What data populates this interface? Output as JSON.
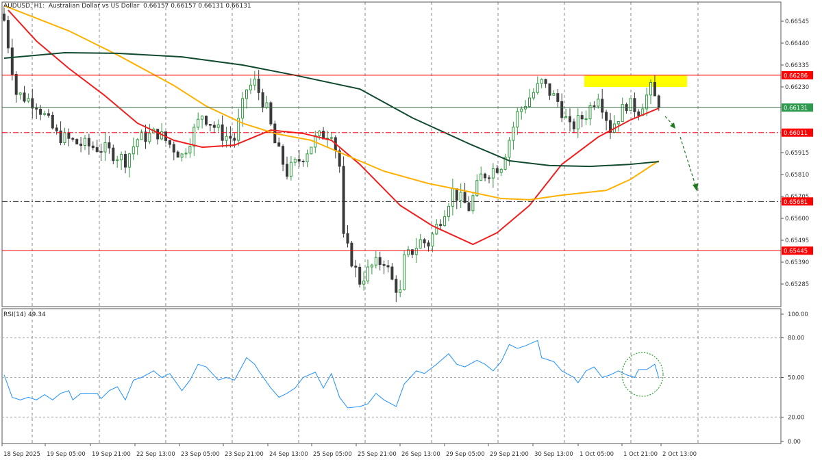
{
  "header": {
    "symbol": "AUDUSD",
    "timeframe": "H1",
    "description": "Australian Dollar vs US Dollar",
    "ohlc": "0.66157 0.66157 0.66131 0.66131",
    "full": "AUDUSD, H1:  Australian Dollar vs US Dollar  0.66157 0.66157 0.66131 0.66131"
  },
  "rsi_panel": {
    "title": "RSI(14) 49.34"
  },
  "colors": {
    "bull": "#2e9a3c",
    "bear": "#3a3a3a",
    "ma_fast": "#f01e1e",
    "ma_mid": "#ffb000",
    "ma_slow": "#0f4a2e",
    "rsi": "#1e90ff",
    "level_red": "#ff0000",
    "current": "#2e9a4e",
    "zone": "#ffff00",
    "arrow": "#1e7a1e"
  },
  "chart_data": [
    {
      "type": "candlestick",
      "title": "AUDUSD, H1",
      "ylim": [
        0.65215,
        0.66635
      ],
      "price_ticks": [
        "0.66545",
        "0.66440",
        "0.66335",
        "0.66230",
        "0.65915",
        "0.65810",
        "0.65705",
        "0.65600",
        "0.65495",
        "0.65390",
        "0.65285"
      ],
      "time_labels": [
        "18 Sep 2025",
        "19 Sep 05:00",
        "19 Sep 21:00",
        "22 Sep 13:00",
        "23 Sep 05:00",
        "23 Sep 21:00",
        "24 Sep 13:00",
        "25 Sep 05:00",
        "25 Sep 21:00",
        "26 Sep 13:00",
        "29 Sep 05:00",
        "29 Sep 21:00",
        "30 Sep 13:00",
        "1 Oct 05:00",
        "1 Oct 21:00",
        "2 Oct 13:00"
      ],
      "close_path": [
        [
          0,
          0.6655
        ],
        [
          2,
          0.6632
        ],
        [
          3,
          0.662
        ],
        [
          8,
          0.6615
        ],
        [
          13,
          0.66
        ],
        [
          18,
          0.6596
        ],
        [
          25,
          0.6593
        ],
        [
          30,
          0.6588
        ],
        [
          33,
          0.6598
        ],
        [
          38,
          0.6601
        ],
        [
          44,
          0.659
        ],
        [
          49,
          0.661
        ],
        [
          54,
          0.66
        ],
        [
          57,
          0.6598
        ],
        [
          60,
          0.6622
        ],
        [
          62,
          0.6625
        ],
        [
          65,
          0.6612
        ],
        [
          67,
          0.6596
        ],
        [
          70,
          0.6582
        ],
        [
          74,
          0.659
        ],
        [
          77,
          0.6598
        ],
        [
          81,
          0.6602
        ],
        [
          83,
          0.6585
        ],
        [
          84,
          0.655
        ],
        [
          86,
          0.654
        ],
        [
          88,
          0.653
        ],
        [
          91,
          0.6537
        ],
        [
          94,
          0.654
        ],
        [
          96,
          0.653
        ],
        [
          98,
          0.6524
        ],
        [
          99,
          0.654
        ],
        [
          103,
          0.6549
        ],
        [
          105,
          0.6548
        ],
        [
          108,
          0.656
        ],
        [
          111,
          0.6573
        ],
        [
          115,
          0.6565
        ],
        [
          118,
          0.658
        ],
        [
          123,
          0.6586
        ],
        [
          127,
          0.661
        ],
        [
          130,
          0.6618
        ],
        [
          133,
          0.6625
        ],
        [
          137,
          0.6616
        ],
        [
          140,
          0.6603
        ],
        [
          144,
          0.661
        ],
        [
          147,
          0.662
        ],
        [
          150,
          0.6603
        ],
        [
          154,
          0.6615
        ],
        [
          157,
          0.6612
        ],
        [
          160,
          0.6622
        ],
        [
          162,
          0.66131
        ]
      ],
      "moving_averages": [
        {
          "name": "MA fast (red)",
          "points": [
            [
              1,
              0.66598
            ],
            [
              8,
              0.6645
            ],
            [
              16,
              0.66319
            ],
            [
              25,
              0.66187
            ],
            [
              33,
              0.66056
            ],
            [
              42,
              0.65974
            ],
            [
              49,
              0.65941
            ],
            [
              57,
              0.65951
            ],
            [
              66,
              0.66023
            ],
            [
              74,
              0.66007
            ],
            [
              81,
              0.65974
            ],
            [
              88,
              0.65859
            ],
            [
              98,
              0.65662
            ],
            [
              106,
              0.65564
            ],
            [
              116,
              0.65475
            ],
            [
              122,
              0.65531
            ],
            [
              130,
              0.65662
            ],
            [
              138,
              0.65859
            ],
            [
              147,
              0.6599
            ],
            [
              155,
              0.66072
            ],
            [
              162,
              0.66128
            ]
          ]
        },
        {
          "name": "MA mid (orange)",
          "points": [
            [
              0,
              0.6662
            ],
            [
              16,
              0.66499
            ],
            [
              28,
              0.66384
            ],
            [
              42,
              0.66237
            ],
            [
              50,
              0.66138
            ],
            [
              59,
              0.66056
            ],
            [
              67,
              0.66007
            ],
            [
              76,
              0.65974
            ],
            [
              84,
              0.65908
            ],
            [
              94,
              0.65826
            ],
            [
              105,
              0.65767
            ],
            [
              115,
              0.65728
            ],
            [
              123,
              0.65695
            ],
            [
              130,
              0.65689
            ],
            [
              138,
              0.65711
            ],
            [
              149,
              0.65734
            ],
            [
              155,
              0.65787
            ],
            [
              162,
              0.65876
            ]
          ]
        },
        {
          "name": "MA slow (dark green)",
          "points": [
            [
              0,
              0.66368
            ],
            [
              15,
              0.66394
            ],
            [
              28,
              0.66391
            ],
            [
              44,
              0.66374
            ],
            [
              59,
              0.66335
            ],
            [
              72,
              0.66286
            ],
            [
              88,
              0.6622
            ],
            [
              101,
              0.66082
            ],
            [
              115,
              0.65958
            ],
            [
              125,
              0.65876
            ],
            [
              135,
              0.65853
            ],
            [
              145,
              0.65849
            ],
            [
              155,
              0.65859
            ],
            [
              162,
              0.65872
            ]
          ]
        }
      ],
      "levels": [
        {
          "price": 0.66286,
          "label": "0.66286",
          "style": "solid",
          "color": "#ff0000"
        },
        {
          "price": 0.66131,
          "label": "0.66131",
          "style": "current",
          "color": "#2e9a4e"
        },
        {
          "price": 0.66011,
          "label": "0.66011",
          "style": "dashdot",
          "color": "#ff0000"
        },
        {
          "price": 0.65681,
          "label": "0.65681",
          "style": "dashdot",
          "color": "#ff0000"
        },
        {
          "price": 0.65445,
          "label": "0.65445",
          "style": "solid",
          "color": "#ff0000"
        }
      ],
      "resistance_zone": {
        "from_bar": 145,
        "to_bar": 170,
        "top": 0.66286,
        "bottom": 0.6623
      }
    },
    {
      "type": "line",
      "title": "RSI(14) 49.34",
      "ylim": [
        0,
        100
      ],
      "ticks": [
        "100.00",
        "80.00",
        "50.00",
        "20.00",
        "0.00"
      ],
      "levels": [
        80,
        50,
        20
      ],
      "points": [
        [
          0,
          52
        ],
        [
          2,
          35
        ],
        [
          4,
          33
        ],
        [
          6,
          35
        ],
        [
          8,
          33
        ],
        [
          10,
          37
        ],
        [
          12,
          33
        ],
        [
          14,
          38
        ],
        [
          16,
          40
        ],
        [
          17,
          33
        ],
        [
          19,
          38
        ],
        [
          23,
          38
        ],
        [
          24,
          34
        ],
        [
          26,
          40
        ],
        [
          28,
          43
        ],
        [
          30,
          33
        ],
        [
          32,
          48
        ],
        [
          34,
          50
        ],
        [
          37,
          55
        ],
        [
          39,
          50
        ],
        [
          41,
          53
        ],
        [
          44,
          40
        ],
        [
          46,
          48
        ],
        [
          48,
          60
        ],
        [
          50,
          58
        ],
        [
          53,
          48
        ],
        [
          55,
          50
        ],
        [
          57,
          48
        ],
        [
          60,
          65
        ],
        [
          62,
          60
        ],
        [
          63,
          55
        ],
        [
          66,
          42
        ],
        [
          68,
          35
        ],
        [
          70,
          38
        ],
        [
          72,
          42
        ],
        [
          74,
          50
        ],
        [
          77,
          54
        ],
        [
          79,
          42
        ],
        [
          81,
          53
        ],
        [
          83,
          35
        ],
        [
          85,
          27
        ],
        [
          88,
          28
        ],
        [
          90,
          30
        ],
        [
          92,
          38
        ],
        [
          94,
          33
        ],
        [
          97,
          28
        ],
        [
          99,
          45
        ],
        [
          102,
          55
        ],
        [
          104,
          53
        ],
        [
          107,
          60
        ],
        [
          110,
          68
        ],
        [
          112,
          60
        ],
        [
          114,
          58
        ],
        [
          117,
          63
        ],
        [
          119,
          60
        ],
        [
          121,
          55
        ],
        [
          123,
          62
        ],
        [
          125,
          75
        ],
        [
          127,
          72
        ],
        [
          129,
          74
        ],
        [
          132,
          78
        ],
        [
          133,
          65
        ],
        [
          136,
          62
        ],
        [
          138,
          55
        ],
        [
          141,
          50
        ],
        [
          142,
          46
        ],
        [
          144,
          55
        ],
        [
          146,
          58
        ],
        [
          148,
          50
        ],
        [
          150,
          52
        ],
        [
          152,
          55
        ],
        [
          154,
          52
        ],
        [
          156,
          50
        ],
        [
          157,
          56
        ],
        [
          159,
          56
        ],
        [
          161,
          60
        ],
        [
          162,
          49.34
        ]
      ]
    }
  ]
}
